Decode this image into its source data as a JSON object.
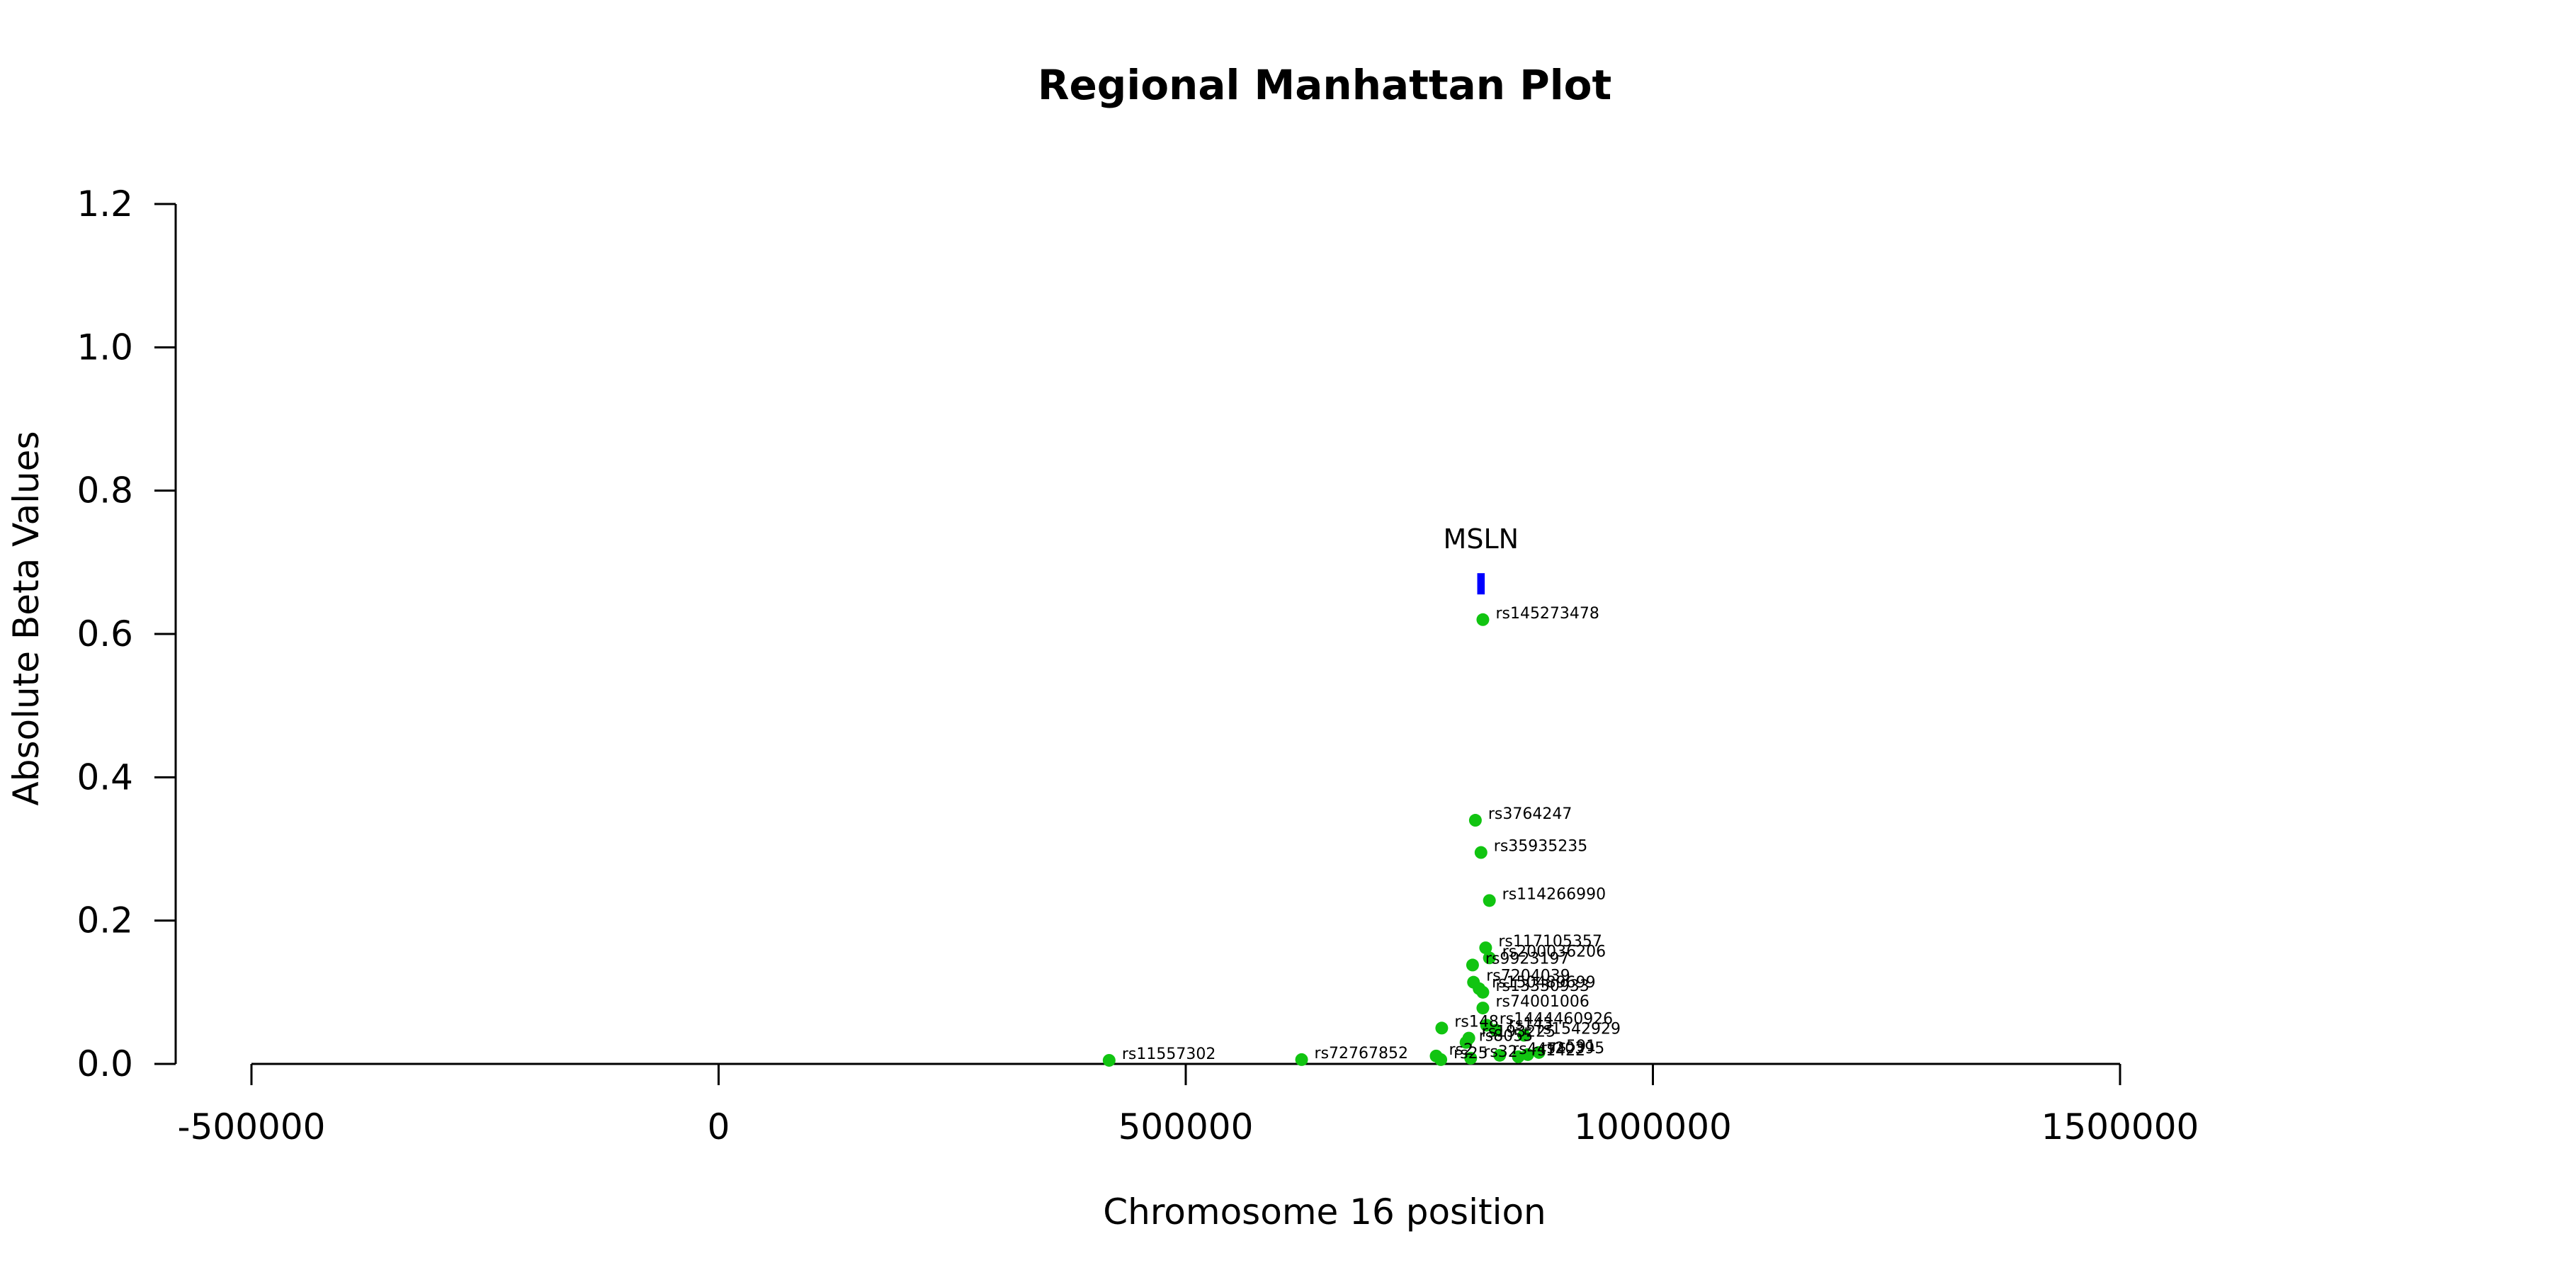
{
  "chart_data": {
    "type": "scatter",
    "title": "Regional Manhattan Plot",
    "xlabel": "Chromosome 16 position",
    "ylabel": "Absolute Beta Values",
    "xlim": [
      -500000,
      1500000
    ],
    "ylim": [
      0,
      1.2
    ],
    "x_ticks": [
      -500000,
      0,
      500000,
      1000000,
      1500000
    ],
    "x_tick_labels": [
      "-500000",
      "0",
      "500000",
      "1000000",
      "1500000"
    ],
    "y_ticks": [
      0.0,
      0.2,
      0.4,
      0.6,
      0.8,
      1.0,
      1.2
    ],
    "y_tick_labels": [
      "0.0",
      "0.2",
      "0.4",
      "0.6",
      "0.8",
      "1.0",
      "1.2"
    ],
    "grid": false,
    "point_color": "#11c411",
    "gene_color": "#0000ff",
    "gene": {
      "name": "MSLN",
      "start": 812000,
      "end": 820000,
      "y": 0.67
    },
    "points": [
      {
        "label": "rs145273478",
        "x": 818000,
        "y": 0.62
      },
      {
        "label": "rs3764247",
        "x": 810000,
        "y": 0.34
      },
      {
        "label": "rs35935235",
        "x": 816000,
        "y": 0.295
      },
      {
        "label": "rs114266990",
        "x": 825000,
        "y": 0.228
      },
      {
        "label": "rs117105357",
        "x": 821000,
        "y": 0.162
      },
      {
        "label": "rs200036206",
        "x": 825000,
        "y": 0.148
      },
      {
        "label": "rs9923197",
        "x": 807000,
        "y": 0.138
      },
      {
        "label": "rs7204039",
        "x": 808000,
        "y": 0.114
      },
      {
        "label": "rs150489699",
        "x": 814000,
        "y": 0.105
      },
      {
        "label": "rs13330933",
        "x": 818000,
        "y": 0.1
      },
      {
        "label": "rs74001006",
        "x": 818000,
        "y": 0.078
      },
      {
        "label": "rs148",
        "x": 774000,
        "y": 0.05
      },
      {
        "label": "rs1444460926",
        "x": 822000,
        "y": 0.054
      },
      {
        "label": "rs143",
        "x": 832000,
        "y": 0.047
      },
      {
        "label": "rs1542929",
        "x": 862000,
        "y": 0.04
      },
      {
        "label": "rs193225",
        "x": 803000,
        "y": 0.036
      },
      {
        "label": "rs8055",
        "x": 800000,
        "y": 0.03
      },
      {
        "label": "rs11557302",
        "x": 418000,
        "y": 0.005
      },
      {
        "label": "rs72767852",
        "x": 624000,
        "y": 0.006
      },
      {
        "label": "rs2",
        "x": 768000,
        "y": 0.011
      },
      {
        "label": "rs25",
        "x": 773000,
        "y": 0.006
      },
      {
        "label": "rs32",
        "x": 805000,
        "y": 0.008
      },
      {
        "label": "rs447",
        "x": 836000,
        "y": 0.012
      },
      {
        "label": "rs1422",
        "x": 856000,
        "y": 0.01
      },
      {
        "label": "rs20395",
        "x": 866000,
        "y": 0.013
      },
      {
        "label": "rs591",
        "x": 878000,
        "y": 0.016
      }
    ]
  }
}
